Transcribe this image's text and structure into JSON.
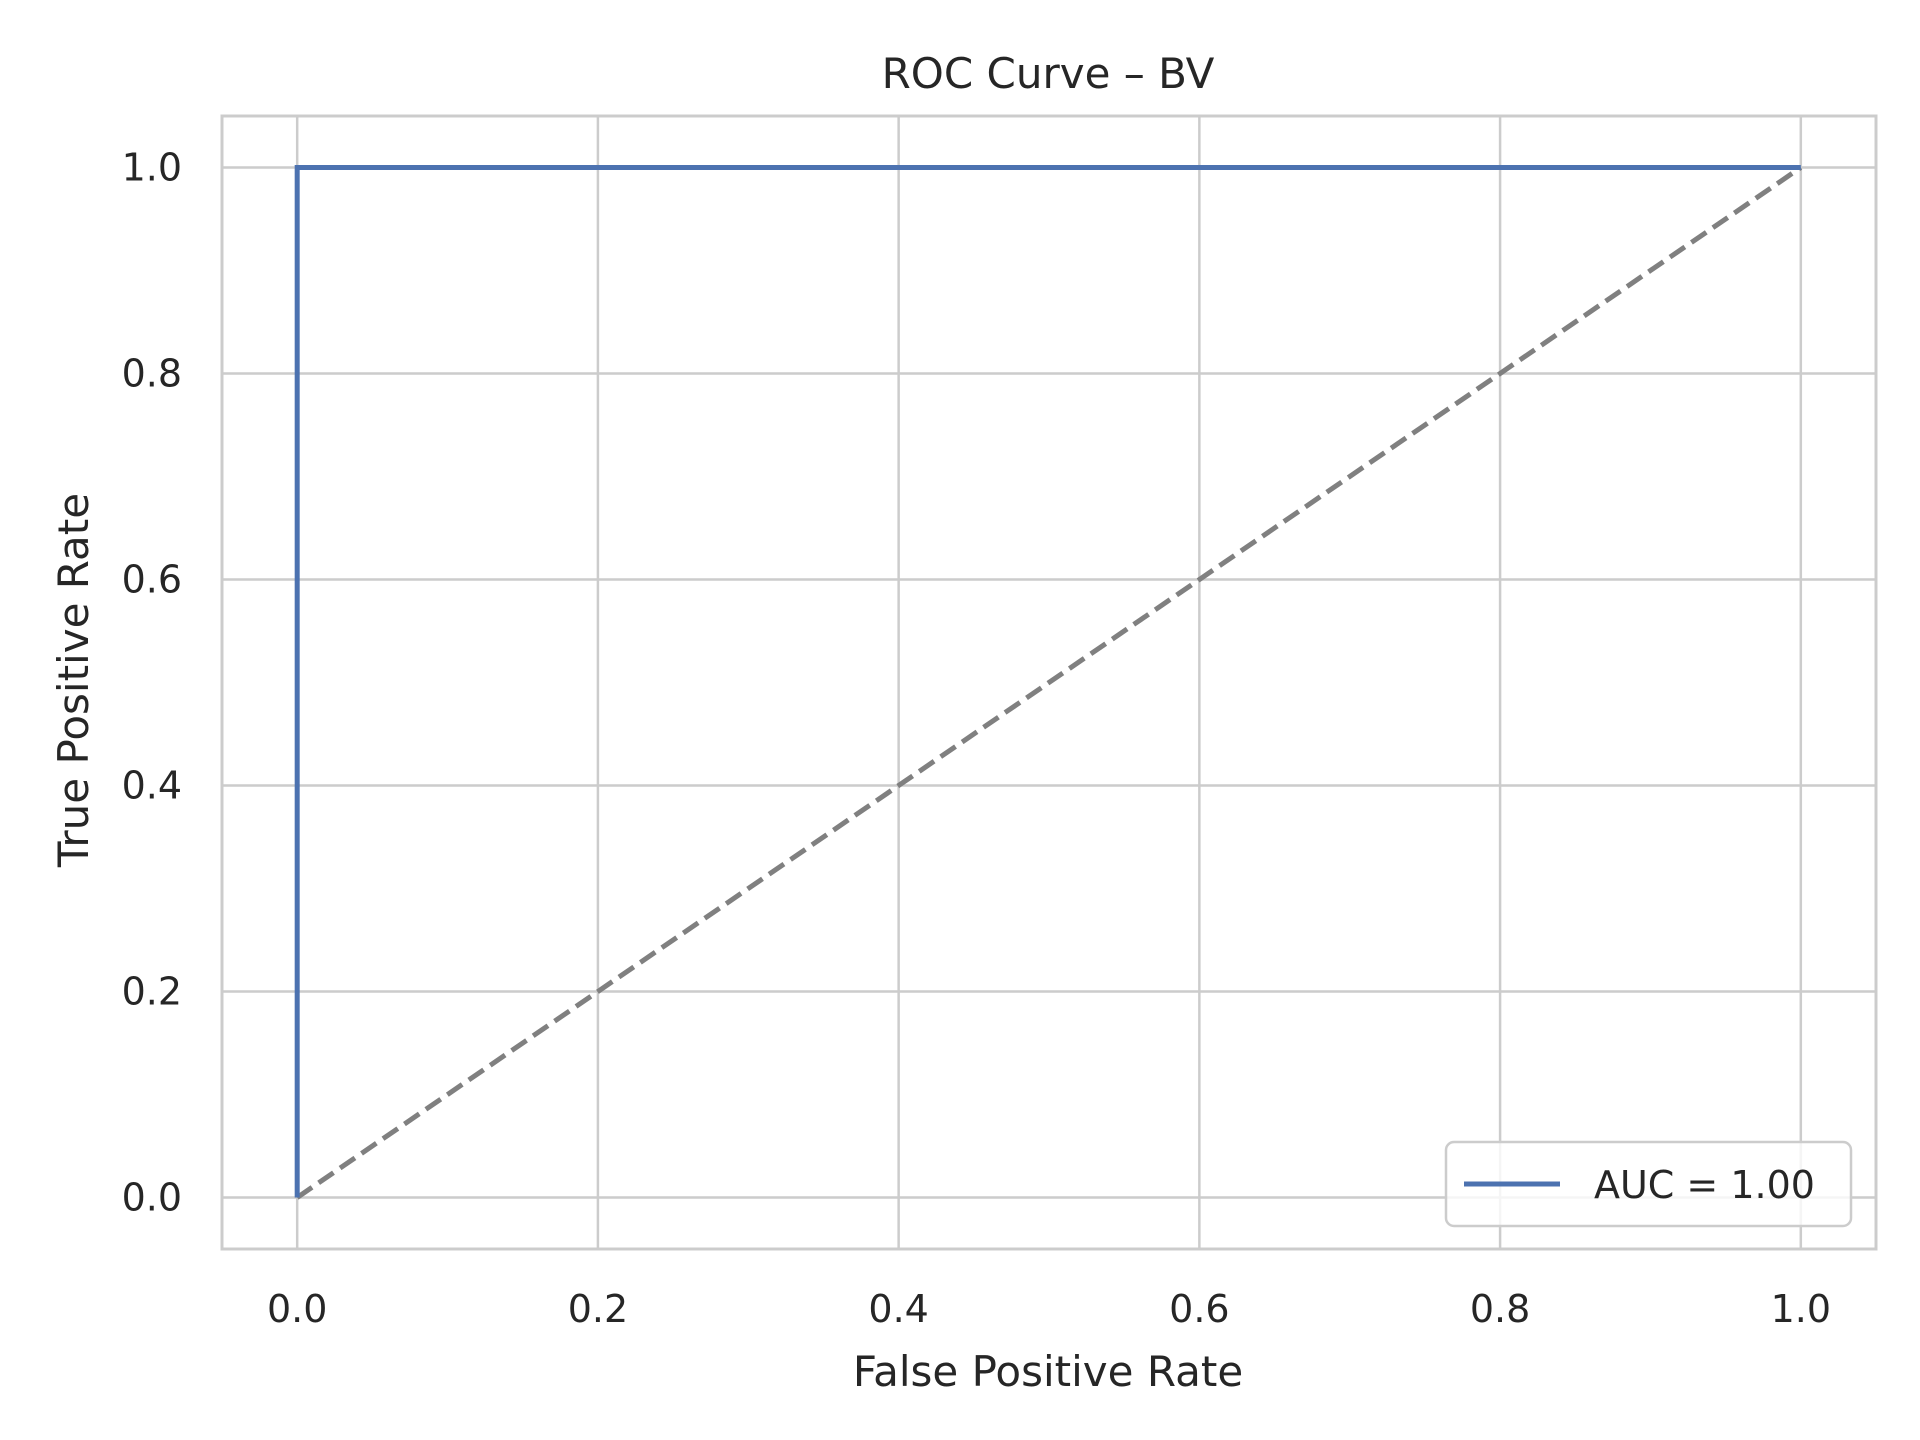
{
  "chart_data": {
    "type": "line",
    "title": "ROC Curve – BV",
    "xlabel": "False Positive Rate",
    "ylabel": "True Positive Rate",
    "xlim": [
      -0.05,
      1.05
    ],
    "ylim": [
      -0.05,
      1.05
    ],
    "x_ticks": [
      0.0,
      0.2,
      0.4,
      0.6,
      0.8,
      1.0
    ],
    "y_ticks": [
      0.0,
      0.2,
      0.4,
      0.6,
      0.8,
      1.0
    ],
    "x_tick_labels": [
      "0.0",
      "0.2",
      "0.4",
      "0.6",
      "0.8",
      "1.0"
    ],
    "y_tick_labels": [
      "0.0",
      "0.2",
      "0.4",
      "0.6",
      "0.8",
      "1.0"
    ],
    "grid": true,
    "legend_position": "lower-right",
    "series": [
      {
        "name": "AUC = 1.00",
        "color": "#4c72b0",
        "style": "solid",
        "x": [
          0.0,
          0.0,
          1.0
        ],
        "y": [
          0.0,
          1.0,
          1.0
        ]
      },
      {
        "color": "#808080",
        "style": "dashed",
        "x": [
          0.0,
          1.0
        ],
        "y": [
          0.0,
          1.0
        ]
      }
    ]
  }
}
